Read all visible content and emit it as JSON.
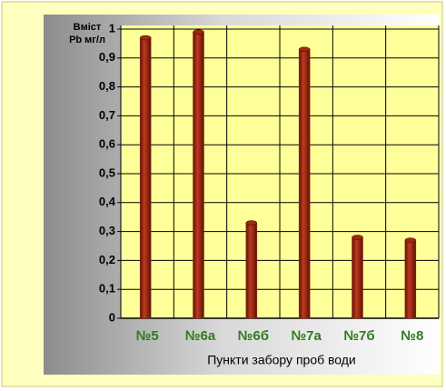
{
  "chart_data": {
    "type": "bar",
    "y_label": [
      "Вміст",
      "Pb мг/л"
    ],
    "x_label": "Пункти забору проб води",
    "categories": [
      "№5",
      "№6а",
      "№6б",
      "№7а",
      "№7б",
      "№8"
    ],
    "values": [
      0.97,
      0.99,
      0.33,
      0.93,
      0.28,
      0.27
    ],
    "color": "#9c2a12",
    "ylim": [
      0,
      1
    ],
    "yticks": [
      0,
      {
        "value": 0.1,
        "label": "0,1"
      },
      {
        "value": 0.2,
        "label": "0,2"
      },
      {
        "value": 0.3,
        "label": "0,3"
      },
      {
        "value": 0.4,
        "label": "0,4"
      },
      {
        "value": 0.5,
        "label": "0,5"
      },
      {
        "value": 0.6,
        "label": "0,6"
      },
      {
        "value": 0.7,
        "label": "0,7"
      },
      {
        "value": 0.8,
        "label": "0,8"
      },
      {
        "value": 0.9,
        "label": "0,9"
      },
      1
    ],
    "grid": true
  }
}
